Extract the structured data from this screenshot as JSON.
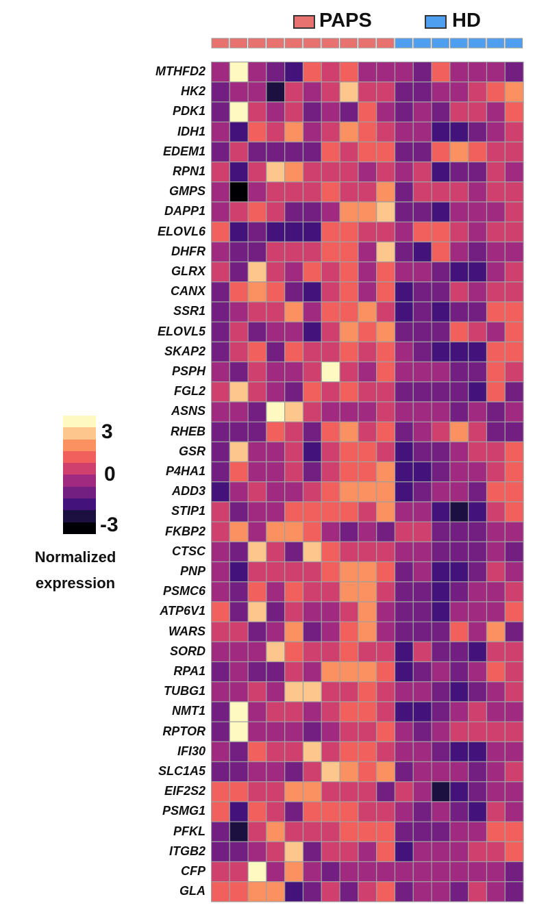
{
  "chart_data": {
    "type": "heatmap",
    "title": "",
    "groups": [
      {
        "name": "PAPS",
        "count": 10,
        "color": "#e8726f"
      },
      {
        "name": "HD",
        "count": 7,
        "color": "#4f9ff0"
      }
    ],
    "colorbar": {
      "title": "Normalized expression",
      "ticks": [
        "3",
        "0",
        "-3"
      ],
      "range": [
        -3,
        3
      ],
      "colors": [
        "#000004",
        "#1b1040",
        "#43127a",
        "#721f81",
        "#9f2a7f",
        "#d0406f",
        "#f1605d",
        "#fb9060",
        "#fdc68c",
        "#fdf9c0"
      ]
    },
    "rows": [
      "MTHFD2",
      "HK2",
      "PDK1",
      "IDH1",
      "EDEM1",
      "RPN1",
      "GMPS",
      "DAPP1",
      "ELOVL6",
      "DHFR",
      "GLRX",
      "CANX",
      "SSR1",
      "ELOVL5",
      "SKAP2",
      "PSPH",
      "FGL2",
      "ASNS",
      "RHEB",
      "GSR",
      "P4HA1",
      "ADD3",
      "STIP1",
      "FKBP2",
      "CTSC",
      "PNP",
      "PSMC6",
      "ATP6V1",
      "WARS",
      "SORD",
      "RPA1",
      "TUBG1",
      "NMT1",
      "RPTOR",
      "IFI30",
      "SLC1A5",
      "EIF2S2",
      "PSMG1",
      "PFKL",
      "ITGB2",
      "CFP",
      "GLA"
    ],
    "values": [
      [
        -0.3,
        2.7,
        -0.3,
        -0.9,
        -1.5,
        0.9,
        0.3,
        0.9,
        -0.3,
        -0.3,
        -0.3,
        -0.9,
        0.9,
        -0.3,
        -0.3,
        -0.3,
        -0.9
      ],
      [
        -0.9,
        -0.3,
        -0.3,
        -2.1,
        0.3,
        -0.3,
        0.3,
        2.1,
        0.3,
        0.3,
        -0.9,
        -0.9,
        -0.3,
        -0.3,
        0.3,
        0.9,
        1.5
      ],
      [
        -0.9,
        2.7,
        0.3,
        -0.3,
        0.3,
        -0.9,
        -0.3,
        -0.9,
        0.9,
        -0.3,
        -0.9,
        -0.3,
        -0.9,
        0.3,
        0.3,
        -0.3,
        0.9
      ],
      [
        -0.3,
        -1.5,
        0.9,
        0.3,
        1.5,
        -0.3,
        0.3,
        1.5,
        0.9,
        0.3,
        -0.3,
        -0.3,
        -1.5,
        -1.5,
        -0.9,
        -0.3,
        0.3
      ],
      [
        -0.9,
        0.3,
        -0.9,
        -0.9,
        -0.9,
        -0.9,
        0.9,
        0.3,
        0.9,
        0.9,
        -0.9,
        -0.9,
        0.9,
        1.5,
        0.9,
        0.3,
        0.3
      ],
      [
        0.3,
        -1.5,
        0.3,
        2.1,
        1.5,
        0.3,
        0.3,
        0.3,
        -0.3,
        0.3,
        -0.3,
        0.3,
        -1.5,
        -0.9,
        -0.9,
        0.3,
        -0.3
      ],
      [
        -0.3,
        -2.7,
        -0.3,
        0.3,
        0.3,
        0.3,
        0.9,
        0.3,
        0.3,
        1.5,
        -0.9,
        0.3,
        0.3,
        0.3,
        -0.3,
        0.3,
        0.3
      ],
      [
        -0.3,
        0.3,
        0.9,
        0.3,
        -0.9,
        -0.9,
        -0.3,
        1.5,
        1.5,
        2.1,
        -0.9,
        -0.9,
        -1.5,
        -0.3,
        -0.3,
        -0.3,
        0.3
      ],
      [
        0.9,
        -1.5,
        -0.9,
        -1.5,
        -1.5,
        -1.5,
        0.9,
        0.9,
        0.3,
        0.3,
        -0.3,
        0.9,
        0.9,
        0.3,
        -0.3,
        0.3,
        0.3
      ],
      [
        -0.3,
        -0.9,
        -0.9,
        0.3,
        0.3,
        0.3,
        0.9,
        0.9,
        -0.3,
        2.1,
        -0.9,
        -1.5,
        0.9,
        -0.3,
        -0.9,
        -0.3,
        -0.3
      ],
      [
        0.3,
        -0.9,
        2.1,
        0.3,
        -0.3,
        0.9,
        0.3,
        0.9,
        -0.3,
        0.9,
        -0.3,
        -0.3,
        -0.9,
        -1.5,
        -1.5,
        -0.3,
        0.3
      ],
      [
        -0.9,
        0.9,
        1.5,
        0.9,
        -0.9,
        -1.5,
        0.3,
        0.9,
        -0.3,
        0.9,
        -1.5,
        -0.9,
        -0.9,
        0.3,
        -0.3,
        0.3,
        0.3
      ],
      [
        -0.9,
        -0.3,
        0.3,
        0.3,
        1.5,
        -0.3,
        0.9,
        0.9,
        1.5,
        0.3,
        -1.5,
        -0.9,
        -1.5,
        -0.9,
        -0.9,
        0.9,
        0.9
      ],
      [
        -0.9,
        0.3,
        -0.9,
        -0.3,
        -0.3,
        -1.5,
        0.3,
        1.5,
        0.9,
        1.5,
        -0.9,
        -0.9,
        -0.9,
        0.9,
        0.3,
        -0.3,
        0.9
      ],
      [
        -0.9,
        0.3,
        0.9,
        -0.9,
        0.9,
        0.3,
        0.3,
        0.9,
        0.3,
        0.9,
        -0.3,
        -0.9,
        -1.5,
        -1.5,
        -1.5,
        0.9,
        0.9
      ],
      [
        -0.3,
        -0.9,
        0.3,
        -0.3,
        -0.3,
        0.3,
        2.7,
        0.3,
        -0.3,
        0.9,
        -0.3,
        -0.3,
        -0.3,
        -0.9,
        -0.9,
        0.9,
        0.3
      ],
      [
        0.3,
        2.1,
        0.3,
        -0.3,
        -0.9,
        0.9,
        0.3,
        0.9,
        0.3,
        0.3,
        -0.9,
        -0.9,
        -0.9,
        -0.9,
        -1.5,
        0.9,
        -0.9
      ],
      [
        -0.3,
        -0.3,
        -0.9,
        2.7,
        2.1,
        0.3,
        -0.3,
        -0.3,
        -0.3,
        0.3,
        -0.3,
        -0.3,
        -0.3,
        -0.9,
        -0.3,
        -0.9,
        -0.3
      ],
      [
        -0.9,
        -0.9,
        -0.9,
        0.9,
        0.3,
        -0.9,
        0.9,
        1.5,
        0.3,
        0.9,
        -0.9,
        -0.3,
        0.3,
        1.5,
        0.3,
        -0.9,
        -0.9
      ],
      [
        -0.9,
        2.1,
        -0.3,
        -0.3,
        0.3,
        -1.5,
        0.3,
        0.9,
        0.9,
        0.3,
        -1.5,
        -0.9,
        -0.9,
        -0.3,
        0.3,
        0.3,
        0.9
      ],
      [
        -0.9,
        0.9,
        -0.3,
        -0.3,
        0.3,
        -0.9,
        0.3,
        0.9,
        0.9,
        1.5,
        -1.5,
        -1.5,
        -0.9,
        -0.3,
        -0.3,
        0.3,
        0.9
      ],
      [
        -1.5,
        -0.3,
        0.3,
        -0.3,
        -0.3,
        0.3,
        0.9,
        1.5,
        1.5,
        1.5,
        -1.5,
        -0.9,
        -0.3,
        -0.3,
        -0.9,
        0.9,
        0.9
      ],
      [
        0.3,
        -0.9,
        -0.3,
        -0.3,
        0.9,
        0.9,
        0.9,
        0.9,
        0.3,
        1.5,
        -0.3,
        -0.3,
        -1.5,
        -2.1,
        -1.5,
        0.3,
        0.9
      ],
      [
        0.3,
        1.5,
        -0.3,
        1.5,
        1.5,
        0.9,
        -0.3,
        -0.9,
        -0.3,
        -0.9,
        0.3,
        0.3,
        -0.9,
        -0.9,
        -0.9,
        -0.3,
        -0.3
      ],
      [
        -0.3,
        -0.9,
        2.1,
        0.3,
        -0.9,
        2.1,
        0.9,
        0.3,
        0.3,
        0.3,
        -0.3,
        -0.3,
        -0.9,
        -0.9,
        -0.9,
        -0.3,
        -0.9
      ],
      [
        -0.3,
        -1.5,
        0.3,
        0.3,
        0.3,
        0.3,
        0.9,
        1.5,
        1.5,
        0.9,
        -0.9,
        -0.3,
        -1.5,
        -1.5,
        -0.9,
        0.3,
        -0.3
      ],
      [
        -0.3,
        -0.9,
        0.9,
        -0.3,
        0.9,
        0.3,
        0.3,
        1.5,
        1.5,
        0.3,
        -0.9,
        -0.9,
        -1.5,
        -0.9,
        -0.3,
        -0.3,
        0.3
      ],
      [
        0.9,
        -0.9,
        2.1,
        -0.9,
        0.3,
        -0.3,
        -0.3,
        0.3,
        1.5,
        -0.3,
        -0.9,
        -0.9,
        -1.5,
        -0.3,
        -0.3,
        -0.3,
        0.9
      ],
      [
        0.3,
        0.3,
        -0.9,
        -0.3,
        1.5,
        -0.9,
        -0.3,
        0.9,
        1.5,
        -0.3,
        -0.9,
        -0.9,
        -0.9,
        0.9,
        -0.3,
        1.5,
        -0.9
      ],
      [
        -0.3,
        -0.3,
        -0.3,
        2.1,
        0.9,
        0.3,
        0.3,
        0.9,
        0.3,
        0.3,
        -1.5,
        0.3,
        -0.9,
        -0.9,
        -1.5,
        0.3,
        0.3
      ],
      [
        -0.9,
        -0.3,
        -0.9,
        -0.9,
        0.3,
        -0.3,
        1.5,
        1.5,
        1.5,
        0.9,
        -1.5,
        -0.9,
        -0.3,
        -0.9,
        -0.3,
        0.9,
        0.3
      ],
      [
        -0.3,
        -0.3,
        0.3,
        -0.3,
        2.1,
        2.1,
        0.3,
        0.3,
        0.9,
        0.3,
        -0.3,
        -0.3,
        -0.9,
        -1.5,
        -0.9,
        -0.3,
        0.3
      ],
      [
        -0.9,
        2.7,
        -0.3,
        0.3,
        0.3,
        -0.3,
        0.3,
        0.9,
        0.9,
        0.3,
        -1.5,
        -1.5,
        -0.9,
        -0.3,
        0.3,
        -0.3,
        -0.3
      ],
      [
        -0.9,
        2.7,
        -0.3,
        -0.3,
        -0.3,
        -0.9,
        -0.3,
        0.3,
        0.3,
        0.9,
        -0.3,
        -0.9,
        -0.3,
        0.3,
        0.3,
        0.3,
        0.3
      ],
      [
        -0.3,
        -0.9,
        0.9,
        0.3,
        0.3,
        2.1,
        0.3,
        0.9,
        0.9,
        0.3,
        -0.3,
        -0.3,
        -0.9,
        -1.5,
        -1.5,
        -0.3,
        -0.3
      ],
      [
        -0.9,
        -0.9,
        -0.3,
        -0.3,
        -0.9,
        0.3,
        2.1,
        1.5,
        0.9,
        1.5,
        -0.9,
        -0.3,
        -0.3,
        -0.3,
        -0.9,
        -0.3,
        0.3
      ],
      [
        0.9,
        0.9,
        0.3,
        0.3,
        1.5,
        1.5,
        0.3,
        0.3,
        0.3,
        -0.9,
        0.3,
        -0.3,
        -2.1,
        -1.5,
        -0.9,
        -0.3,
        -0.3
      ],
      [
        0.9,
        -1.5,
        0.9,
        0.3,
        -0.9,
        0.9,
        0.9,
        0.9,
        0.3,
        0.3,
        -0.3,
        -0.9,
        -0.3,
        -0.9,
        -1.5,
        0.3,
        -0.3
      ],
      [
        -0.9,
        -2.1,
        0.3,
        1.5,
        0.3,
        0.3,
        0.3,
        0.9,
        0.9,
        0.9,
        -0.9,
        -0.9,
        -0.9,
        -0.3,
        -0.3,
        0.9,
        0.9
      ],
      [
        -0.9,
        -0.9,
        -0.3,
        0.3,
        2.1,
        -0.9,
        0.3,
        0.3,
        -0.3,
        0.9,
        -1.5,
        -0.3,
        -0.3,
        -0.3,
        0.3,
        0.3,
        0.9
      ],
      [
        0.3,
        0.3,
        2.7,
        -0.3,
        1.5,
        -0.3,
        -0.9,
        -0.3,
        -0.3,
        -0.3,
        -0.3,
        -0.3,
        -0.3,
        -0.3,
        -0.3,
        -0.3,
        -0.9
      ],
      [
        0.9,
        0.9,
        1.5,
        1.5,
        -1.5,
        -0.9,
        0.3,
        -0.9,
        0.3,
        0.9,
        -0.9,
        -0.3,
        -0.3,
        -0.9,
        0.3,
        -0.3,
        -0.9
      ]
    ]
  }
}
